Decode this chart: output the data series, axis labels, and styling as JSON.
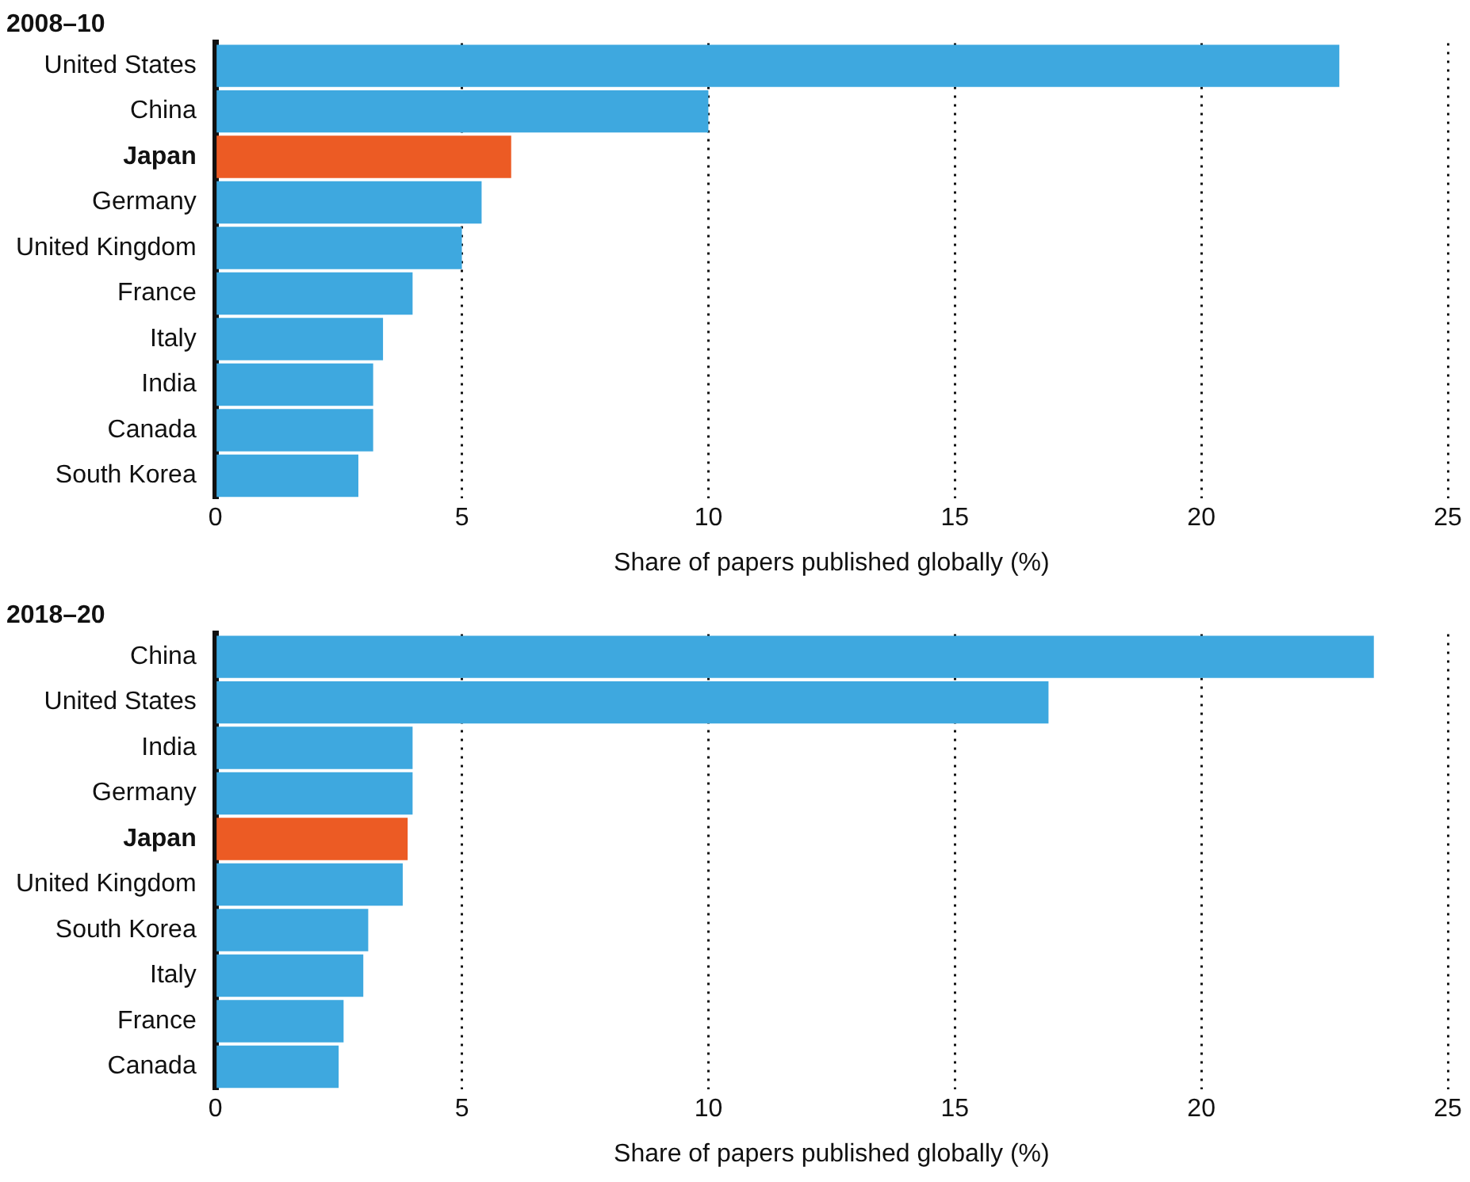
{
  "chart_data": [
    {
      "type": "bar",
      "orientation": "horizontal",
      "title": "2008–10",
      "xlabel": "Share of papers published globally (%)",
      "categories": [
        "United States",
        "China",
        "Japan",
        "Germany",
        "United Kingdom",
        "France",
        "Italy",
        "India",
        "Canada",
        "South Korea"
      ],
      "values": [
        22.8,
        10.0,
        6.0,
        5.4,
        5.0,
        4.0,
        3.4,
        3.2,
        3.2,
        2.9
      ],
      "colors": [
        "#3ea8df",
        "#3ea8df",
        "#ec5b24",
        "#3ea8df",
        "#3ea8df",
        "#3ea8df",
        "#3ea8df",
        "#3ea8df",
        "#3ea8df",
        "#3ea8df"
      ],
      "xlim": [
        0,
        25
      ],
      "xticks": [
        0,
        5,
        10,
        15,
        20,
        25
      ],
      "grid": "x",
      "legend": false
    },
    {
      "type": "bar",
      "orientation": "horizontal",
      "title": "2018–20",
      "xlabel": "Share of papers published globally (%)",
      "categories": [
        "China",
        "United States",
        "India",
        "Germany",
        "Japan",
        "United Kingdom",
        "South Korea",
        "Italy",
        "France",
        "Canada"
      ],
      "values": [
        23.5,
        16.9,
        4.0,
        4.0,
        3.9,
        3.8,
        3.1,
        3.0,
        2.6,
        2.5
      ],
      "colors": [
        "#3ea8df",
        "#3ea8df",
        "#3ea8df",
        "#3ea8df",
        "#ec5b24",
        "#3ea8df",
        "#3ea8df",
        "#3ea8df",
        "#3ea8df",
        "#3ea8df"
      ],
      "xlim": [
        0,
        25
      ],
      "xticks": [
        0,
        5,
        10,
        15,
        20,
        25
      ],
      "grid": "x",
      "legend": false
    }
  ]
}
